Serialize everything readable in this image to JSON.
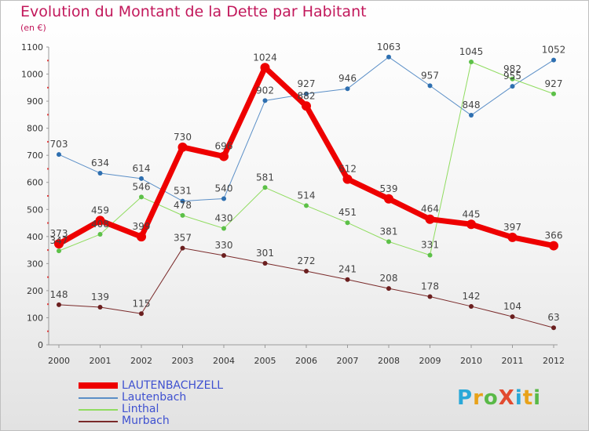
{
  "title": "Evolution du Montant de la Dette par Habitant",
  "subtitle": "(en €)",
  "logo": {
    "text": "ProXiti",
    "colors": [
      "#2aa8d8",
      "#e8a21a",
      "#59b947",
      "#e24a2f",
      "#2aa8d8",
      "#e8a21a",
      "#59b947"
    ]
  },
  "chart_data": {
    "type": "line",
    "x": [
      "2000",
      "2001",
      "2002",
      "2003",
      "2004",
      "2005",
      "2006",
      "2007",
      "2008",
      "2009",
      "2010",
      "2011",
      "2012"
    ],
    "ylim": [
      0,
      1100
    ],
    "yticks": [
      0,
      100,
      200,
      300,
      400,
      500,
      600,
      700,
      800,
      900,
      1000,
      1100
    ],
    "grid": false,
    "legend_position": "bottom-left",
    "series": [
      {
        "name": "LAUTENBACHZELL",
        "color": "#ee0000",
        "width": 7,
        "values": [
          373,
          459,
          399,
          730,
          696,
          1024,
          882,
          612,
          539,
          464,
          445,
          397,
          366
        ],
        "labels": [
          "373",
          "459",
          "399",
          "730",
          "696",
          "1024",
          "882",
          "612",
          "539",
          "464",
          "445",
          "397",
          "366"
        ]
      },
      {
        "name": "Lautenbach",
        "color": "#5b8fc7",
        "width": 1,
        "values": [
          703,
          634,
          614,
          531,
          540,
          902,
          927,
          946,
          1063,
          957,
          848,
          955,
          1052
        ],
        "labels": [
          "703",
          "634",
          "614",
          "531",
          "540",
          "902",
          "927",
          "946",
          "1063",
          "957",
          "848",
          "955",
          "1052"
        ]
      },
      {
        "name": "Linthal",
        "color": "#90dc60",
        "width": 1,
        "values": [
          347,
          408,
          546,
          478,
          430,
          581,
          514,
          451,
          381,
          331,
          1045,
          982,
          927
        ],
        "labels": [
          "347",
          "408",
          "546",
          "478",
          "430",
          "581",
          "514",
          "451",
          "381",
          "331",
          "1045",
          "982",
          "927"
        ]
      },
      {
        "name": "Murbach",
        "color": "#7a2a2a",
        "width": 1,
        "values": [
          148,
          139,
          115,
          357,
          330,
          301,
          272,
          241,
          208,
          178,
          142,
          104,
          63
        ],
        "labels": [
          "148",
          "139",
          "115",
          "357",
          "330",
          "301",
          "272",
          "241",
          "208",
          "178",
          "142",
          "104",
          "63"
        ]
      }
    ]
  }
}
